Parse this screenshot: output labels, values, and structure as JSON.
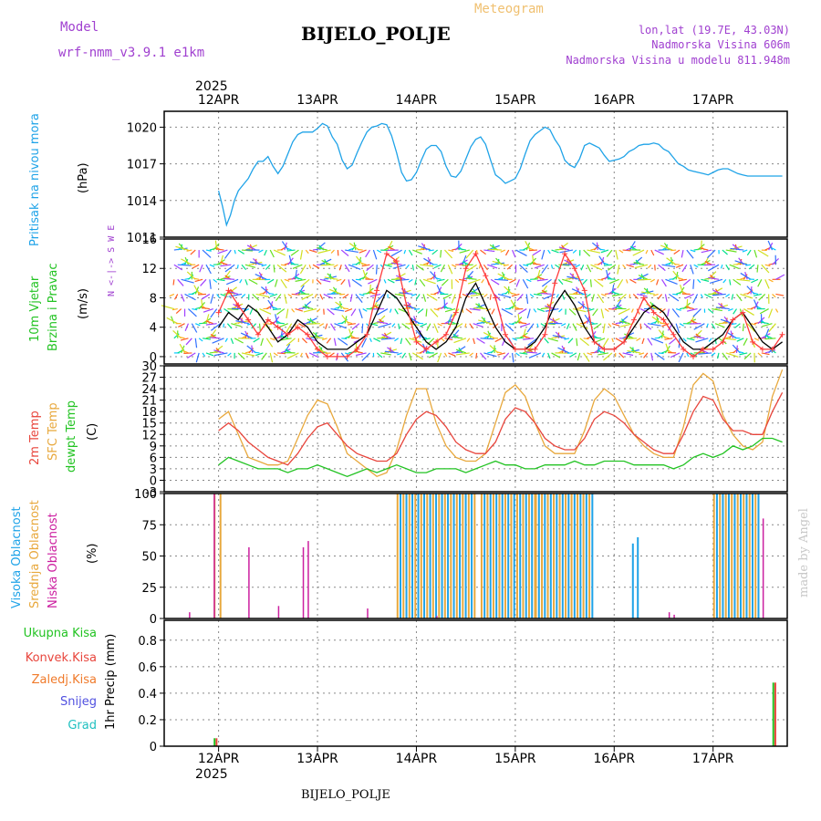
{
  "header": {
    "model_label": "Model",
    "model_name": "wrf-nmm_v3.9.1  e1km",
    "title": "BIJELO_POLJE",
    "meteogram_label": "Meteogram",
    "coords": "lon,lat (19.7E, 43.03N)",
    "elevation": "Nadmorska Visina 606m",
    "model_elevation": "Nadmorska Visina u modelu 811.948m",
    "year_top": "2025",
    "year_bottom": "2025",
    "footer_station": "BIJELO_POLJE",
    "watermark": "made by Angel"
  },
  "colors": {
    "pressure": "#1fa3e8",
    "t2m": "#e8453c",
    "sfc": "#e8a83c",
    "dewpt": "#22c322",
    "wind_speed": "#000000",
    "wind_direction": "#ff3b3b",
    "high_cloud": "#1fa3e8",
    "mid_cloud": "#e8a83c",
    "low_cloud": "#cc1fa0",
    "total_precip": "#22c322",
    "conv_precip": "#e8453c",
    "frz_precip": "#f07a2a",
    "snow": "#5050e0",
    "graupel": "#20c0c0",
    "header_purple": "#a040d0",
    "meteogram_label": "#f0c070"
  },
  "chart_data": [
    {
      "type": "line",
      "panel": "pressure",
      "ylabel_main": "Pritisak na nivou mora",
      "ylabel_unit": "(hPa)",
      "x_ticks": [
        "12APR",
        "13APR",
        "14APR",
        "15APR",
        "16APR",
        "17APR"
      ],
      "y_ticks": [
        1011,
        1014,
        1017,
        1020
      ],
      "ylim": [
        1011,
        1021.3
      ],
      "x": [
        0,
        0.04,
        0.08,
        0.12,
        0.16,
        0.2,
        0.25,
        0.3,
        0.35,
        0.4,
        0.45,
        0.5,
        0.55,
        0.6,
        0.65,
        0.7,
        0.75,
        0.8,
        0.85,
        0.9,
        0.95,
        1.0,
        1.05,
        1.1,
        1.15,
        1.2,
        1.25,
        1.3,
        1.35,
        1.4,
        1.45,
        1.5,
        1.55,
        1.6,
        1.65,
        1.7,
        1.75,
        1.8,
        1.85,
        1.9,
        1.95,
        2.0,
        2.05,
        2.1,
        2.15,
        2.2,
        2.25,
        2.3,
        2.35,
        2.4,
        2.45,
        2.5,
        2.55,
        2.6,
        2.65,
        2.7,
        2.75,
        2.8,
        2.85,
        2.9,
        2.95,
        3.0,
        3.05,
        3.1,
        3.15,
        3.2,
        3.25,
        3.3,
        3.35,
        3.4,
        3.45,
        3.5,
        3.55,
        3.6,
        3.65,
        3.7,
        3.75,
        3.8,
        3.85,
        3.9,
        3.95,
        4.0,
        4.05,
        4.1,
        4.15,
        4.2,
        4.25,
        4.3,
        4.35,
        4.4,
        4.45,
        4.5,
        4.55,
        4.6,
        4.65,
        4.7,
        4.75,
        4.8,
        4.85,
        4.9,
        4.95,
        5.0,
        5.05,
        5.1,
        5.15,
        5.2,
        5.25,
        5.3,
        5.35,
        5.4,
        5.45,
        5.5,
        5.55,
        5.6,
        5.65,
        5.7
      ],
      "series": [
        {
          "values": [
            1014.8,
            1013.5,
            1012.0,
            1012.8,
            1014.0,
            1014.8,
            1015.3,
            1015.8,
            1016.6,
            1017.2,
            1017.2,
            1017.6,
            1016.8,
            1016.2,
            1016.8,
            1017.8,
            1018.8,
            1019.4,
            1019.6,
            1019.6,
            1019.6,
            1019.9,
            1020.3,
            1020.1,
            1019.2,
            1018.6,
            1017.3,
            1016.6,
            1016.9,
            1017.9,
            1018.8,
            1019.6,
            1020.0,
            1020.1,
            1020.3,
            1020.2,
            1019.3,
            1017.9,
            1016.3,
            1015.6,
            1015.7,
            1016.3,
            1017.3,
            1018.2,
            1018.5,
            1018.5,
            1018.0,
            1016.8,
            1016.0,
            1015.9,
            1016.4,
            1017.4,
            1018.4,
            1019.0,
            1019.2,
            1018.6,
            1017.3,
            1016.1,
            1015.8,
            1015.4,
            1015.6,
            1015.8,
            1016.6,
            1017.8,
            1018.9,
            1019.4,
            1019.7,
            1020.0,
            1019.8,
            1019.0,
            1018.4,
            1017.3,
            1016.9,
            1016.7,
            1017.4,
            1018.5,
            1018.7,
            1018.5,
            1018.3,
            1017.7,
            1017.2,
            1017.3,
            1017.4,
            1017.6,
            1018.0,
            1018.2,
            1018.5,
            1018.6,
            1018.6,
            1018.7,
            1018.6,
            1018.2,
            1018.0,
            1017.5,
            1017.0,
            1016.8,
            1016.5,
            1016.4,
            1016.3,
            1016.2,
            1016.1,
            1016.3,
            1016.5,
            1016.6,
            1016.6,
            1016.4,
            1016.2,
            1016.1,
            1016.0,
            1016.0,
            1016.0,
            1016.0,
            1016.0,
            1016.0,
            1016.0,
            1016.0
          ]
        }
      ]
    },
    {
      "type": "line",
      "panel": "wind",
      "ylabel_main": "10m Vjetar",
      "ylabel_sub": "Brzina i Pravac",
      "ylabel_unit": "(m/s)",
      "compass_label": "N <-|-> S  W  E",
      "y_ticks": [
        0,
        4,
        8,
        12,
        16
      ],
      "ylim": [
        -1,
        16
      ],
      "x": [
        0,
        0.1,
        0.2,
        0.3,
        0.4,
        0.5,
        0.6,
        0.7,
        0.8,
        0.9,
        1.0,
        1.1,
        1.2,
        1.3,
        1.4,
        1.5,
        1.6,
        1.7,
        1.8,
        1.9,
        2.0,
        2.1,
        2.2,
        2.3,
        2.4,
        2.5,
        2.6,
        2.7,
        2.8,
        2.9,
        3.0,
        3.1,
        3.2,
        3.3,
        3.4,
        3.5,
        3.6,
        3.7,
        3.8,
        3.9,
        4.0,
        4.1,
        4.2,
        4.3,
        4.4,
        4.5,
        4.6,
        4.7,
        4.8,
        4.9,
        5.0,
        5.1,
        5.2,
        5.3,
        5.4,
        5.5,
        5.6,
        5.7
      ],
      "series": [
        {
          "name": "speed",
          "values": [
            4,
            6,
            5,
            7,
            6,
            4,
            2,
            3,
            5,
            4,
            2,
            1,
            1,
            1,
            2,
            3,
            6,
            9,
            8,
            6,
            4,
            2,
            1,
            2,
            4,
            8,
            10,
            7,
            4,
            2,
            1,
            1,
            2,
            4,
            7,
            9,
            7,
            4,
            2,
            1,
            1,
            2,
            4,
            6,
            7,
            6,
            4,
            2,
            1,
            1,
            2,
            3,
            5,
            6,
            4,
            2,
            1,
            2
          ]
        },
        {
          "name": "direction",
          "values": [
            6,
            9,
            7,
            5,
            3,
            5,
            4,
            3,
            4,
            3,
            1,
            0,
            0,
            0,
            1,
            3,
            9,
            14,
            13,
            7,
            2,
            1,
            2,
            3,
            6,
            12,
            14,
            11,
            8,
            3,
            1,
            1,
            1,
            3,
            10,
            14,
            12,
            9,
            2,
            1,
            1,
            2,
            5,
            8,
            6,
            5,
            3,
            1,
            0,
            1,
            1,
            2,
            5,
            6,
            2,
            1,
            1,
            3
          ]
        }
      ]
    },
    {
      "type": "line",
      "panel": "temperature",
      "ylabel_t2m": "2m Temp",
      "ylabel_sfc": "SFC Temp",
      "ylabel_dew": "dewpt Temp",
      "ylabel_unit": "(C)",
      "y_ticks": [
        -3,
        0,
        3,
        6,
        9,
        12,
        15,
        18,
        21,
        24,
        27,
        30
      ],
      "ylim": [
        -3,
        30
      ],
      "x": [
        0,
        0.1,
        0.2,
        0.3,
        0.4,
        0.5,
        0.6,
        0.7,
        0.8,
        0.9,
        1.0,
        1.1,
        1.2,
        1.3,
        1.4,
        1.5,
        1.6,
        1.7,
        1.8,
        1.9,
        2.0,
        2.1,
        2.2,
        2.3,
        2.4,
        2.5,
        2.6,
        2.7,
        2.8,
        2.9,
        3.0,
        3.1,
        3.2,
        3.3,
        3.4,
        3.5,
        3.6,
        3.7,
        3.8,
        3.9,
        4.0,
        4.1,
        4.2,
        4.3,
        4.4,
        4.5,
        4.6,
        4.7,
        4.8,
        4.9,
        5.0,
        5.1,
        5.2,
        5.3,
        5.4,
        5.5,
        5.6,
        5.7
      ],
      "series": [
        {
          "name": "2m Temp",
          "values": [
            13,
            15,
            13,
            10,
            8,
            6,
            5,
            4,
            7,
            11,
            14,
            15,
            12,
            9,
            7,
            6,
            5,
            5,
            7,
            12,
            16,
            18,
            17,
            14,
            10,
            8,
            7,
            7,
            10,
            16,
            19,
            18,
            15,
            11,
            9,
            8,
            8,
            11,
            16,
            18,
            17,
            15,
            12,
            10,
            8,
            7,
            7,
            12,
            18,
            22,
            21,
            16,
            13,
            13,
            12,
            12,
            18,
            23
          ]
        },
        {
          "name": "SFC Temp",
          "values": [
            16,
            18,
            12,
            6,
            5,
            4,
            4,
            5,
            11,
            17,
            21,
            20,
            14,
            7,
            5,
            3,
            1,
            2,
            8,
            17,
            24,
            24,
            15,
            9,
            6,
            5,
            5,
            7,
            15,
            23,
            25,
            22,
            15,
            9,
            7,
            7,
            7,
            13,
            21,
            24,
            22,
            17,
            12,
            9,
            7,
            6,
            6,
            14,
            25,
            28,
            26,
            17,
            12,
            9,
            8,
            10,
            22,
            29
          ]
        },
        {
          "name": "dewpt Temp",
          "values": [
            4,
            6,
            5,
            4,
            3,
            3,
            3,
            2,
            3,
            3,
            4,
            3,
            2,
            1,
            2,
            3,
            2,
            3,
            4,
            3,
            2,
            2,
            3,
            3,
            3,
            2,
            3,
            4,
            5,
            4,
            4,
            3,
            3,
            4,
            4,
            4,
            5,
            4,
            4,
            5,
            5,
            5,
            4,
            4,
            4,
            4,
            3,
            4,
            6,
            7,
            6,
            7,
            9,
            8,
            9,
            11,
            11,
            10
          ]
        }
      ]
    },
    {
      "type": "bar",
      "panel": "cloud",
      "ylabel_high": "Visoka Oblacnost",
      "ylabel_mid": "Srednja Oblacnost",
      "ylabel_low": "Niska Oblacnost",
      "ylabel_unit": "(%)",
      "y_ticks": [
        0,
        25,
        50,
        75,
        100
      ],
      "ylim": [
        0,
        100
      ],
      "segments": [
        {
          "name": "high",
          "ranges": [
            [
              1.8,
              2.6,
              100
            ],
            [
              2.65,
              3.2,
              100
            ],
            [
              3.2,
              3.8,
              100
            ],
            [
              4.15,
              4.2,
              60
            ],
            [
              4.2,
              4.25,
              65
            ],
            [
              5.0,
              5.45,
              100
            ]
          ]
        },
        {
          "name": "mid",
          "ranges": [
            [
              -0.05,
              0.05,
              100
            ],
            [
              1.8,
              2.6,
              100
            ],
            [
              2.65,
              3.2,
              100
            ],
            [
              3.2,
              3.8,
              100
            ],
            [
              5.0,
              5.45,
              100
            ]
          ]
        },
        {
          "name": "low",
          "bars": [
            [
              -0.3,
              5
            ],
            [
              -0.05,
              100
            ],
            [
              0.3,
              57
            ],
            [
              0.6,
              10
            ],
            [
              0.85,
              57
            ],
            [
              0.9,
              62
            ],
            [
              1.5,
              8
            ],
            [
              2.2,
              2
            ],
            [
              4.55,
              5
            ],
            [
              4.6,
              3
            ],
            [
              5.5,
              80
            ]
          ]
        }
      ]
    },
    {
      "type": "bar",
      "panel": "precipitation",
      "ylabel_total": "Ukupna Kisa",
      "ylabel_conv": "Konvek.Kisa",
      "ylabel_frz": "Zaledj.Kisa",
      "ylabel_snow": "Snijeg",
      "ylabel_grad": "Grad",
      "ylabel_unit": "1hr Precip (mm)",
      "y_ticks": [
        0,
        0.2,
        0.4,
        0.6,
        0.8
      ],
      "ylim": [
        0,
        0.95
      ],
      "x_ticks": [
        "12APR",
        "13APR",
        "14APR",
        "15APR",
        "16APR",
        "17APR"
      ],
      "bars": [
        {
          "x": -0.05,
          "value": 0.06,
          "series": "total"
        },
        {
          "x": -0.03,
          "value": 0.06,
          "series": "conv"
        },
        {
          "x": 5.6,
          "value": 0.48,
          "series": "total"
        },
        {
          "x": 5.62,
          "value": 0.48,
          "series": "conv"
        }
      ]
    }
  ]
}
